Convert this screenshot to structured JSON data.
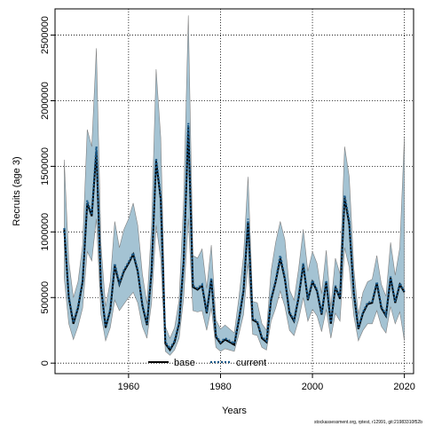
{
  "chart_data": {
    "type": "line",
    "title": "",
    "xlabel": "Years",
    "ylabel": "Recruits (age 3)",
    "xlim": [
      1944,
      2022
    ],
    "ylim": [
      -80000,
      2700000
    ],
    "xticks": [
      1960,
      1980,
      2000,
      2020
    ],
    "yticks": [
      0,
      500000,
      1000000,
      1500000,
      2000000,
      2500000
    ],
    "ytick_labels": [
      "0",
      "500000",
      "1000000",
      "1500000",
      "2000000",
      "2500000"
    ],
    "grid": true,
    "legend_position": "bottom-center",
    "band_color": "#a4c3d3",
    "band_edge_color": "#808080",
    "footnote": "stockassessment.org, rptest, r12991, git:21983310f52b",
    "x": [
      1946,
      1947,
      1948,
      1949,
      1950,
      1951,
      1952,
      1953,
      1954,
      1955,
      1956,
      1957,
      1958,
      1959,
      1960,
      1961,
      1962,
      1963,
      1964,
      1965,
      1966,
      1967,
      1968,
      1969,
      1970,
      1971,
      1972,
      1973,
      1974,
      1975,
      1976,
      1977,
      1978,
      1979,
      1980,
      1981,
      1982,
      1983,
      1984,
      1985,
      1986,
      1987,
      1988,
      1989,
      1990,
      1991,
      1992,
      1993,
      1994,
      1995,
      1996,
      1997,
      1998,
      1999,
      2000,
      2001,
      2002,
      2003,
      2004,
      2005,
      2006,
      2007,
      2008,
      2009,
      2010,
      2011,
      2012,
      2013,
      2014,
      2015,
      2016,
      2017,
      2018,
      2019,
      2020
    ],
    "series": [
      {
        "name": "base",
        "color": "#000000",
        "line": "solid",
        "values": [
          1020000,
          500000,
          300000,
          420000,
          620000,
          1220000,
          1120000,
          1620000,
          580000,
          270000,
          400000,
          740000,
          600000,
          700000,
          760000,
          830000,
          700000,
          440000,
          290000,
          700000,
          1540000,
          1250000,
          150000,
          100000,
          160000,
          300000,
          780000,
          1800000,
          580000,
          560000,
          590000,
          380000,
          640000,
          200000,
          150000,
          180000,
          160000,
          140000,
          330000,
          550000,
          1080000,
          330000,
          310000,
          190000,
          160000,
          480000,
          620000,
          800000,
          640000,
          380000,
          320000,
          500000,
          750000,
          480000,
          620000,
          550000,
          370000,
          620000,
          300000,
          580000,
          490000,
          1260000,
          1060000,
          530000,
          260000,
          380000,
          450000,
          460000,
          610000,
          420000,
          360000,
          650000,
          460000,
          600000,
          540000
        ]
      },
      {
        "name": "current",
        "color": "#1a5a8a",
        "line": "dotted",
        "values": [
          1030000,
          510000,
          310000,
          430000,
          630000,
          1240000,
          1130000,
          1650000,
          590000,
          280000,
          410000,
          760000,
          610000,
          710000,
          770000,
          840000,
          710000,
          450000,
          300000,
          710000,
          1560000,
          1270000,
          160000,
          110000,
          170000,
          310000,
          790000,
          1830000,
          590000,
          570000,
          600000,
          390000,
          650000,
          210000,
          160000,
          190000,
          170000,
          150000,
          340000,
          560000,
          1100000,
          340000,
          320000,
          200000,
          170000,
          490000,
          630000,
          820000,
          650000,
          390000,
          330000,
          510000,
          760000,
          490000,
          630000,
          560000,
          380000,
          630000,
          310000,
          590000,
          500000,
          1280000,
          1080000,
          540000,
          270000,
          390000,
          460000,
          470000,
          620000,
          430000,
          370000,
          660000,
          470000,
          610000,
          550000
        ]
      }
    ],
    "ci_lower": [
      650000,
      300000,
      180000,
      280000,
      420000,
      850000,
      780000,
      1100000,
      370000,
      170000,
      270000,
      480000,
      400000,
      450000,
      500000,
      540000,
      460000,
      280000,
      190000,
      460000,
      1050000,
      800000,
      90000,
      60000,
      100000,
      190000,
      500000,
      1100000,
      400000,
      390000,
      400000,
      250000,
      420000,
      120000,
      90000,
      110000,
      100000,
      90000,
      220000,
      370000,
      760000,
      220000,
      210000,
      120000,
      100000,
      320000,
      420000,
      550000,
      430000,
      250000,
      210000,
      330000,
      500000,
      320000,
      410000,
      360000,
      240000,
      410000,
      190000,
      380000,
      320000,
      880000,
      730000,
      360000,
      170000,
      250000,
      300000,
      300000,
      400000,
      280000,
      230000,
      430000,
      300000,
      390000,
      170000
    ],
    "ci_upper": [
      1550000,
      780000,
      500000,
      620000,
      900000,
      1780000,
      1650000,
      2400000,
      900000,
      430000,
      620000,
      1080000,
      880000,
      1020000,
      1100000,
      1220000,
      1050000,
      680000,
      450000,
      1050000,
      2240000,
      1720000,
      280000,
      190000,
      270000,
      480000,
      1250000,
      2650000,
      820000,
      800000,
      870000,
      570000,
      900000,
      330000,
      260000,
      290000,
      260000,
      230000,
      500000,
      820000,
      1420000,
      470000,
      460000,
      300000,
      250000,
      700000,
      920000,
      1080000,
      940000,
      560000,
      480000,
      720000,
      1020000,
      700000,
      850000,
      760000,
      530000,
      860000,
      430000,
      800000,
      680000,
      1650000,
      1420000,
      720000,
      370000,
      540000,
      620000,
      640000,
      820000,
      600000,
      510000,
      920000,
      670000,
      880000,
      1720000
    ]
  }
}
